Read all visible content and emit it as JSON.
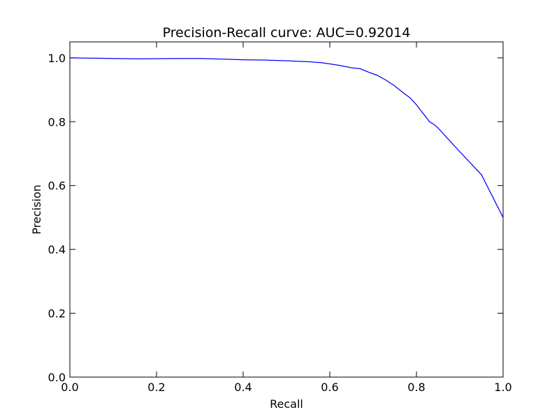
{
  "chart_data": {
    "type": "line",
    "title": "Precision-Recall curve: AUC=0.92014",
    "xlabel": "Recall",
    "ylabel": "Precision",
    "xlim": [
      0.0,
      1.0
    ],
    "ylim": [
      0.0,
      1.05
    ],
    "grid": false,
    "line_color": "#0000ff",
    "x_ticks": [
      {
        "value": 0.0,
        "label": "0.0"
      },
      {
        "value": 0.2,
        "label": "0.2"
      },
      {
        "value": 0.4,
        "label": "0.4"
      },
      {
        "value": 0.6,
        "label": "0.6"
      },
      {
        "value": 0.8,
        "label": "0.8"
      },
      {
        "value": 1.0,
        "label": "1.0"
      }
    ],
    "y_ticks": [
      {
        "value": 0.0,
        "label": "0.0"
      },
      {
        "value": 0.2,
        "label": "0.2"
      },
      {
        "value": 0.4,
        "label": "0.4"
      },
      {
        "value": 0.6,
        "label": "0.6"
      },
      {
        "value": 0.8,
        "label": "0.8"
      },
      {
        "value": 1.0,
        "label": "1.0"
      }
    ],
    "series": [
      {
        "points": [
          {
            "x": 0.0,
            "y": 1.0
          },
          {
            "x": 0.05,
            "y": 0.999
          },
          {
            "x": 0.1,
            "y": 0.998
          },
          {
            "x": 0.16,
            "y": 0.997
          },
          {
            "x": 0.25,
            "y": 0.998
          },
          {
            "x": 0.3,
            "y": 0.998
          },
          {
            "x": 0.36,
            "y": 0.996
          },
          {
            "x": 0.4,
            "y": 0.994
          },
          {
            "x": 0.45,
            "y": 0.993
          },
          {
            "x": 0.5,
            "y": 0.991
          },
          {
            "x": 0.55,
            "y": 0.988
          },
          {
            "x": 0.58,
            "y": 0.985
          },
          {
            "x": 0.6,
            "y": 0.981
          },
          {
            "x": 0.62,
            "y": 0.977
          },
          {
            "x": 0.65,
            "y": 0.969
          },
          {
            "x": 0.67,
            "y": 0.966
          },
          {
            "x": 0.69,
            "y": 0.955
          },
          {
            "x": 0.71,
            "y": 0.945
          },
          {
            "x": 0.73,
            "y": 0.93
          },
          {
            "x": 0.75,
            "y": 0.912
          },
          {
            "x": 0.77,
            "y": 0.89
          },
          {
            "x": 0.785,
            "y": 0.875
          },
          {
            "x": 0.8,
            "y": 0.853
          },
          {
            "x": 0.81,
            "y": 0.835
          },
          {
            "x": 0.82,
            "y": 0.818
          },
          {
            "x": 0.83,
            "y": 0.8
          },
          {
            "x": 0.842,
            "y": 0.79
          },
          {
            "x": 0.85,
            "y": 0.78
          },
          {
            "x": 0.9,
            "y": 0.706
          },
          {
            "x": 0.95,
            "y": 0.634
          },
          {
            "x": 1.0,
            "y": 0.5
          }
        ]
      }
    ]
  }
}
